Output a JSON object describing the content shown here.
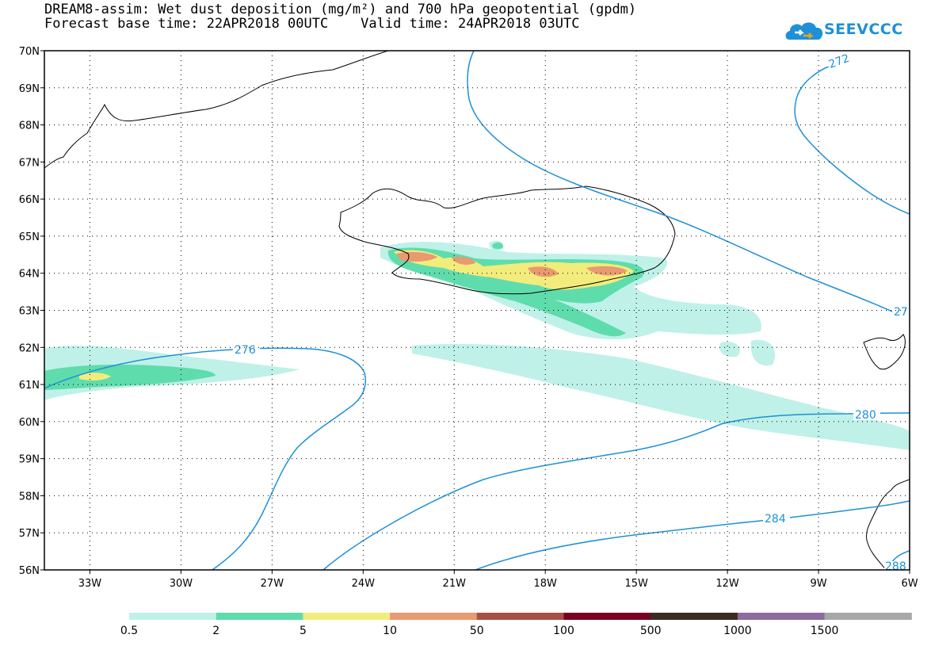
{
  "title": {
    "line1": "DREAM8-assim: Wet dust deposition (mg/m²) and 700 hPa geopotential (gpdm)",
    "line2": "Forecast base time: 22APR2018 00UTC    Valid time: 24APR2018 03UTC"
  },
  "logo": {
    "text": "SEEVCCC",
    "icon": "cloud-icon",
    "color": "#1e90d8"
  },
  "map": {
    "lon_range": [
      -34.5,
      -6
    ],
    "lat_range": [
      56,
      70
    ],
    "lat_labels": [
      "70N",
      "69N",
      "68N",
      "67N",
      "66N",
      "65N",
      "64N",
      "63N",
      "62N",
      "61N",
      "60N",
      "59N",
      "58N",
      "57N",
      "56N"
    ],
    "lon_labels": [
      "33W",
      "30W",
      "27W",
      "24W",
      "21W",
      "18W",
      "15W",
      "12W",
      "9W",
      "6W"
    ],
    "contour_color": "#1e90d8",
    "contour_labels": [
      {
        "text": "272"
      },
      {
        "text": "27"
      },
      {
        "text": "276"
      },
      {
        "text": "280"
      },
      {
        "text": "284"
      },
      {
        "text": "288"
      }
    ]
  },
  "legend": {
    "colors": [
      "#bff1e8",
      "#5fdcac",
      "#f2ec7c",
      "#e89a70",
      "#a85048",
      "#7a0022",
      "#3a2c20",
      "#8e6a9e",
      "#a8a8a8"
    ],
    "labels": [
      "0.5",
      "2",
      "5",
      "10",
      "50",
      "100",
      "500",
      "1000",
      "1500"
    ]
  }
}
